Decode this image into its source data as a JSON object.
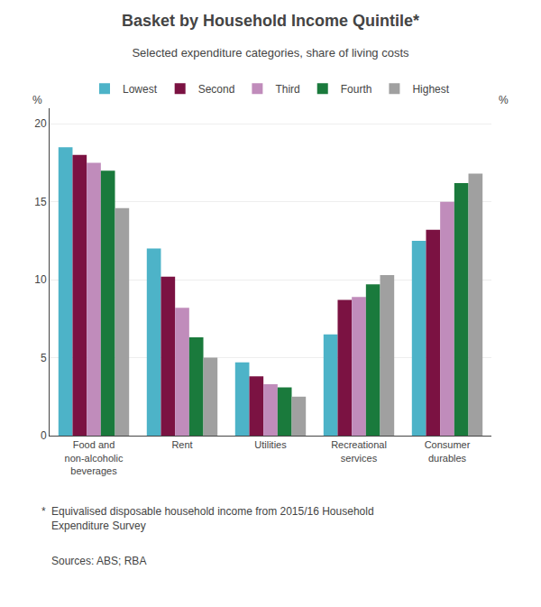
{
  "chart_data": {
    "type": "bar",
    "title": "Basket by Household Income Quintile*",
    "subtitle": "Selected expenditure categories, share of living costs",
    "categories": [
      "Food and\nnon-alcoholic\nbeverages",
      "Rent",
      "Utilities",
      "Recreational\nservices",
      "Consumer\ndurables"
    ],
    "series": [
      {
        "name": "Lowest",
        "color": "#4db3c8",
        "values": [
          18.5,
          12.0,
          4.7,
          6.5,
          12.5
        ]
      },
      {
        "name": "Second",
        "color": "#7b1242",
        "values": [
          18.0,
          10.2,
          3.8,
          8.7,
          13.2
        ]
      },
      {
        "name": "Third",
        "color": "#c08cbb",
        "values": [
          17.5,
          8.2,
          3.3,
          8.9,
          15.0
        ]
      },
      {
        "name": "Fourth",
        "color": "#1a7a3c",
        "values": [
          17.0,
          6.3,
          3.1,
          9.7,
          16.2
        ]
      },
      {
        "name": "Highest",
        "color": "#a0a0a0",
        "values": [
          14.6,
          5.0,
          2.5,
          10.3,
          16.8
        ]
      }
    ],
    "ylabel": "%",
    "y2label": "%",
    "ylim": [
      0,
      21
    ],
    "yticks": [
      0,
      5,
      10,
      15,
      20
    ],
    "y2lim": [
      0,
      21
    ],
    "y2ticks": [
      0,
      5,
      10,
      15,
      20
    ],
    "grid": true,
    "legend": "top",
    "annotations": [
      "*",
      "Equivalised disposable household income from 2015/16 Household\nExpenditure Survey",
      "Sources: ABS; RBA"
    ]
  }
}
